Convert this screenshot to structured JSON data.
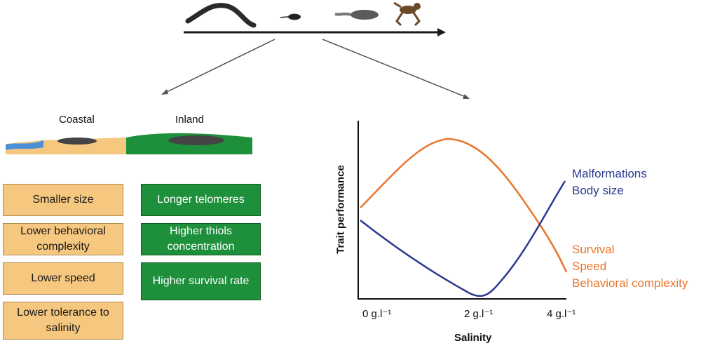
{
  "regions": {
    "coastal": "Coastal",
    "inland": "Inland"
  },
  "coastal_traits": [
    "Smaller size",
    "Lower behavioral complexity",
    "Lower speed",
    "Lower tolerance to salinity"
  ],
  "inland_traits": [
    "Longer telomeres",
    "Higher thiols concentration",
    "Higher survival rate"
  ],
  "chart": {
    "ylabel": "Trait performance",
    "xlabel": "Salinity",
    "ticks": [
      "0 g.l⁻¹",
      "2 g.l⁻¹",
      "4 g.l⁻¹"
    ],
    "blue_labels": [
      "Malformations",
      "Body size"
    ],
    "orange_labels": [
      "Survival",
      "Speed",
      "Behavioral complexity"
    ]
  },
  "colors": {
    "blue": "#2b3990",
    "orange": "#e8762d",
    "coastal_box": "#f6c77e",
    "inland_box": "#1e8f3b"
  },
  "icons": [
    "eggs-string-icon",
    "embryo-icon",
    "tadpole-icon",
    "froglet-icon"
  ]
}
